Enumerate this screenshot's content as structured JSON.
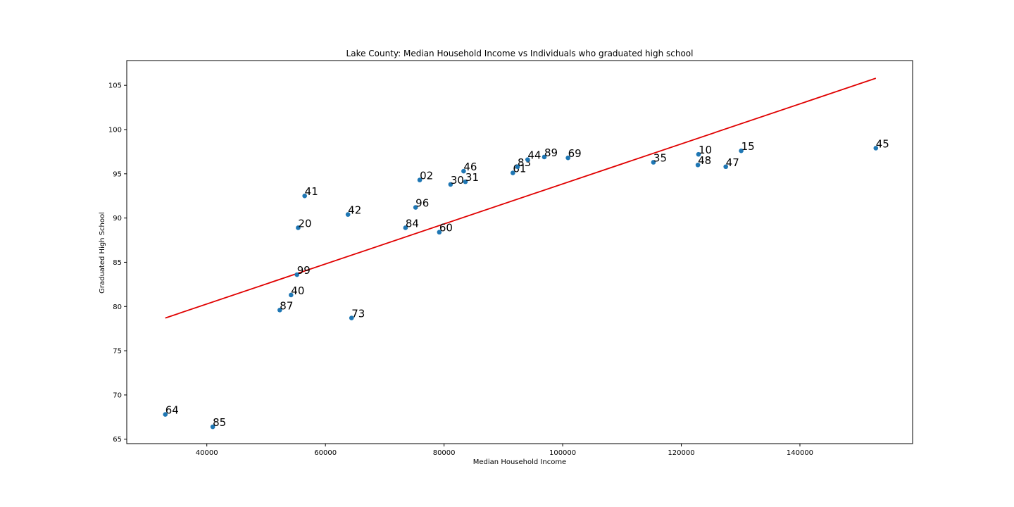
{
  "chart_data": {
    "type": "scatter",
    "title": "Lake County: Median Household Income vs Individuals who graduated high school",
    "xlabel": "Median Household Income",
    "ylabel": "Graduated High School",
    "xlim": [
      26500,
      159000
    ],
    "ylim": [
      64.5,
      107.8
    ],
    "xticks": [
      40000,
      60000,
      80000,
      100000,
      120000,
      140000
    ],
    "yticks": [
      65,
      70,
      75,
      80,
      85,
      90,
      95,
      100,
      105
    ],
    "grid": false,
    "point_color": "#1f77b4",
    "line_color": "#e00000",
    "points": [
      {
        "label": "64",
        "x": 33000,
        "y": 67.8
      },
      {
        "label": "85",
        "x": 41000,
        "y": 66.4
      },
      {
        "label": "87",
        "x": 52300,
        "y": 79.6
      },
      {
        "label": "40",
        "x": 54200,
        "y": 81.3
      },
      {
        "label": "99",
        "x": 55200,
        "y": 83.6
      },
      {
        "label": "20",
        "x": 55400,
        "y": 88.9
      },
      {
        "label": "41",
        "x": 56500,
        "y": 92.5
      },
      {
        "label": "42",
        "x": 63800,
        "y": 90.4
      },
      {
        "label": "73",
        "x": 64400,
        "y": 78.7
      },
      {
        "label": "84",
        "x": 73500,
        "y": 88.9
      },
      {
        "label": "96",
        "x": 75200,
        "y": 91.2
      },
      {
        "label": "02",
        "x": 75900,
        "y": 94.3
      },
      {
        "label": "60",
        "x": 79200,
        "y": 88.4
      },
      {
        "label": "30",
        "x": 81100,
        "y": 93.8
      },
      {
        "label": "46",
        "x": 83300,
        "y": 95.3
      },
      {
        "label": "31",
        "x": 83600,
        "y": 94.1
      },
      {
        "label": "61",
        "x": 91600,
        "y": 95.1
      },
      {
        "label": "83",
        "x": 92400,
        "y": 95.8
      },
      {
        "label": "44",
        "x": 94100,
        "y": 96.6
      },
      {
        "label": "89",
        "x": 96900,
        "y": 96.9
      },
      {
        "label": "69",
        "x": 100900,
        "y": 96.8
      },
      {
        "label": "35",
        "x": 115300,
        "y": 96.3
      },
      {
        "label": "48",
        "x": 122800,
        "y": 96.0
      },
      {
        "label": "10",
        "x": 122900,
        "y": 97.2
      },
      {
        "label": "47",
        "x": 127500,
        "y": 95.8
      },
      {
        "label": "15",
        "x": 130100,
        "y": 97.6
      },
      {
        "label": "45",
        "x": 152800,
        "y": 97.9
      }
    ],
    "regression_line": {
      "x": [
        33000,
        152800
      ],
      "y": [
        78.7,
        105.8
      ]
    }
  }
}
